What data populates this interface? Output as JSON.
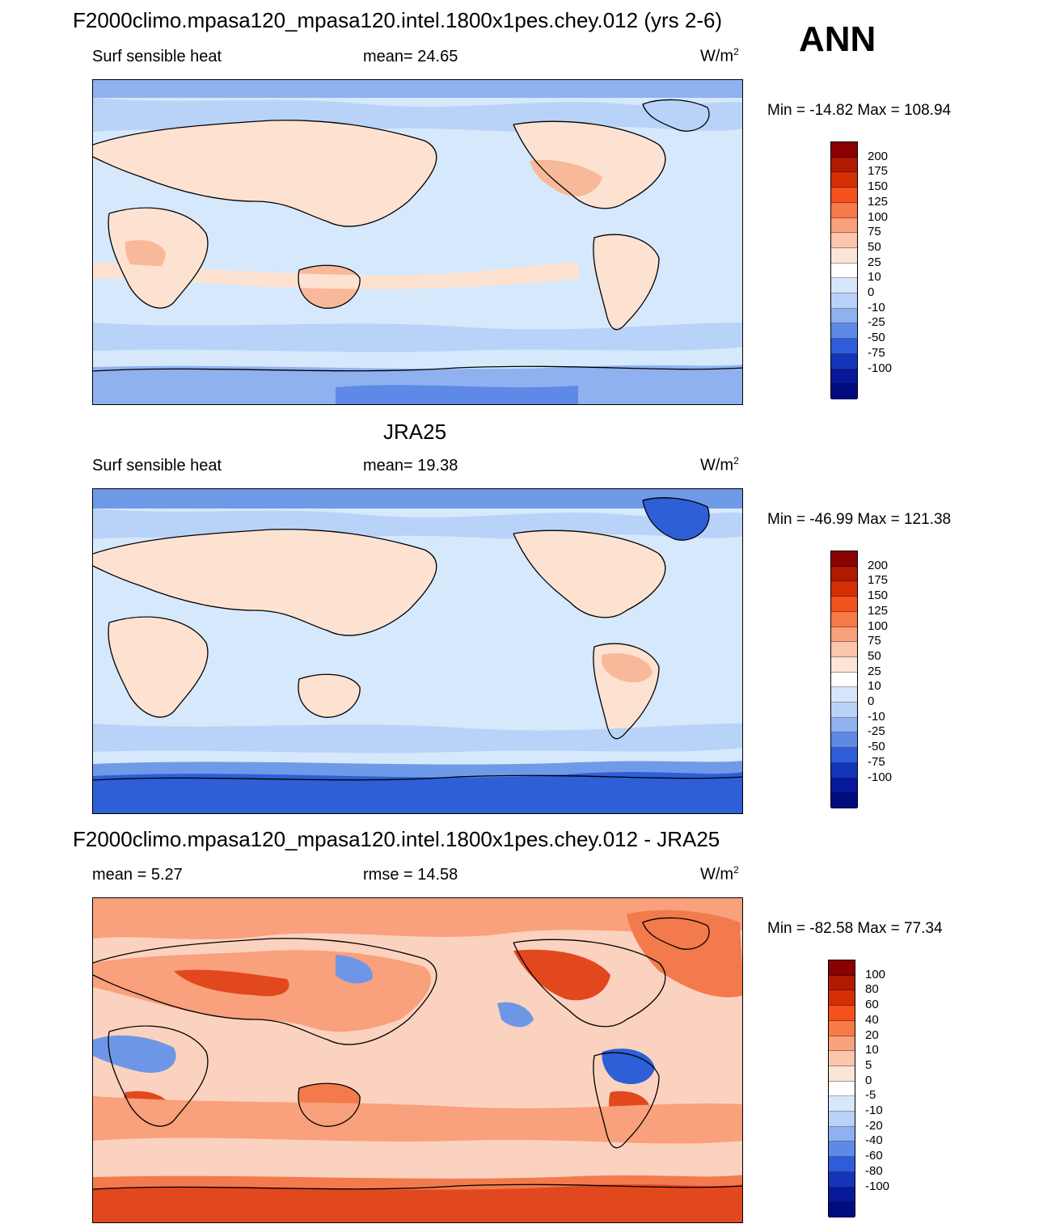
{
  "season": "ANN",
  "colors": {
    "ocean_main": "#d6e8fb",
    "land_warm": "#fde2d2",
    "land_warmer": "#f8b99a",
    "cool": "#a9c9f5",
    "cooler": "#6f9ae8",
    "coldest": "#2e5fd6",
    "diff_base": "#fbd2bf",
    "diff_strong": "#f27a4c",
    "diff_hot": "#e2481e",
    "diff_neg": "#6e96e6",
    "coast": "#000000"
  },
  "panels": [
    {
      "title": "F2000climo.mpasa120_mpasa120.intel.1800x1pes.chey.012 (yrs 2-6)",
      "left_label": "Surf sensible heat",
      "center_label": "mean=  24.65",
      "units": "W/m",
      "units_sup": "2",
      "minmax": "Min = -14.82 Max = 108.94",
      "colorbar_labels": [
        "200",
        "175",
        "150",
        "125",
        "100",
        "75",
        "50",
        "25",
        "10",
        "0",
        "-10",
        "-25",
        "-50",
        "-75",
        "-100"
      ],
      "colorbar_colors": [
        "#8b0000",
        "#b01a00",
        "#d42e05",
        "#f3521c",
        "#f67a4a",
        "#f9a07c",
        "#fbc6ac",
        "#fde5d6",
        "#ffffff",
        "#d7e6fb",
        "#b9d2f7",
        "#8fb1f0",
        "#5e89e6",
        "#2f5cd8",
        "#1535b8",
        "#07189a",
        "#000c7d"
      ]
    },
    {
      "title": "JRA25",
      "left_label": "Surf sensible heat",
      "center_label": "mean=  19.38",
      "units": "W/m",
      "units_sup": "2",
      "minmax": "Min = -46.99 Max = 121.38",
      "colorbar_labels": [
        "200",
        "175",
        "150",
        "125",
        "100",
        "75",
        "50",
        "25",
        "10",
        "0",
        "-10",
        "-25",
        "-50",
        "-75",
        "-100"
      ],
      "colorbar_colors": [
        "#8b0000",
        "#b01a00",
        "#d42e05",
        "#f3521c",
        "#f67a4a",
        "#f9a07c",
        "#fbc6ac",
        "#fde5d6",
        "#ffffff",
        "#d7e6fb",
        "#b9d2f7",
        "#8fb1f0",
        "#5e89e6",
        "#2f5cd8",
        "#1535b8",
        "#07189a",
        "#000c7d"
      ]
    },
    {
      "title": "F2000climo.mpasa120_mpasa120.intel.1800x1pes.chey.012 - JRA25",
      "left_label": "mean =   5.27",
      "center_label": "rmse =  14.58",
      "units": "W/m",
      "units_sup": "2",
      "minmax": "Min = -82.58 Max =  77.34",
      "colorbar_labels": [
        "100",
        "80",
        "60",
        "40",
        "20",
        "10",
        "5",
        "0",
        "-5",
        "-10",
        "-20",
        "-40",
        "-60",
        "-80",
        "-100"
      ],
      "colorbar_colors": [
        "#8b0000",
        "#b01a00",
        "#d42e05",
        "#f3521c",
        "#f67a4a",
        "#f9a07c",
        "#fbc6ac",
        "#fde5d6",
        "#ffffff",
        "#d7e6fb",
        "#b9d2f7",
        "#8fb1f0",
        "#5e89e6",
        "#2f5cd8",
        "#1535b8",
        "#07189a",
        "#000c7d"
      ]
    }
  ]
}
